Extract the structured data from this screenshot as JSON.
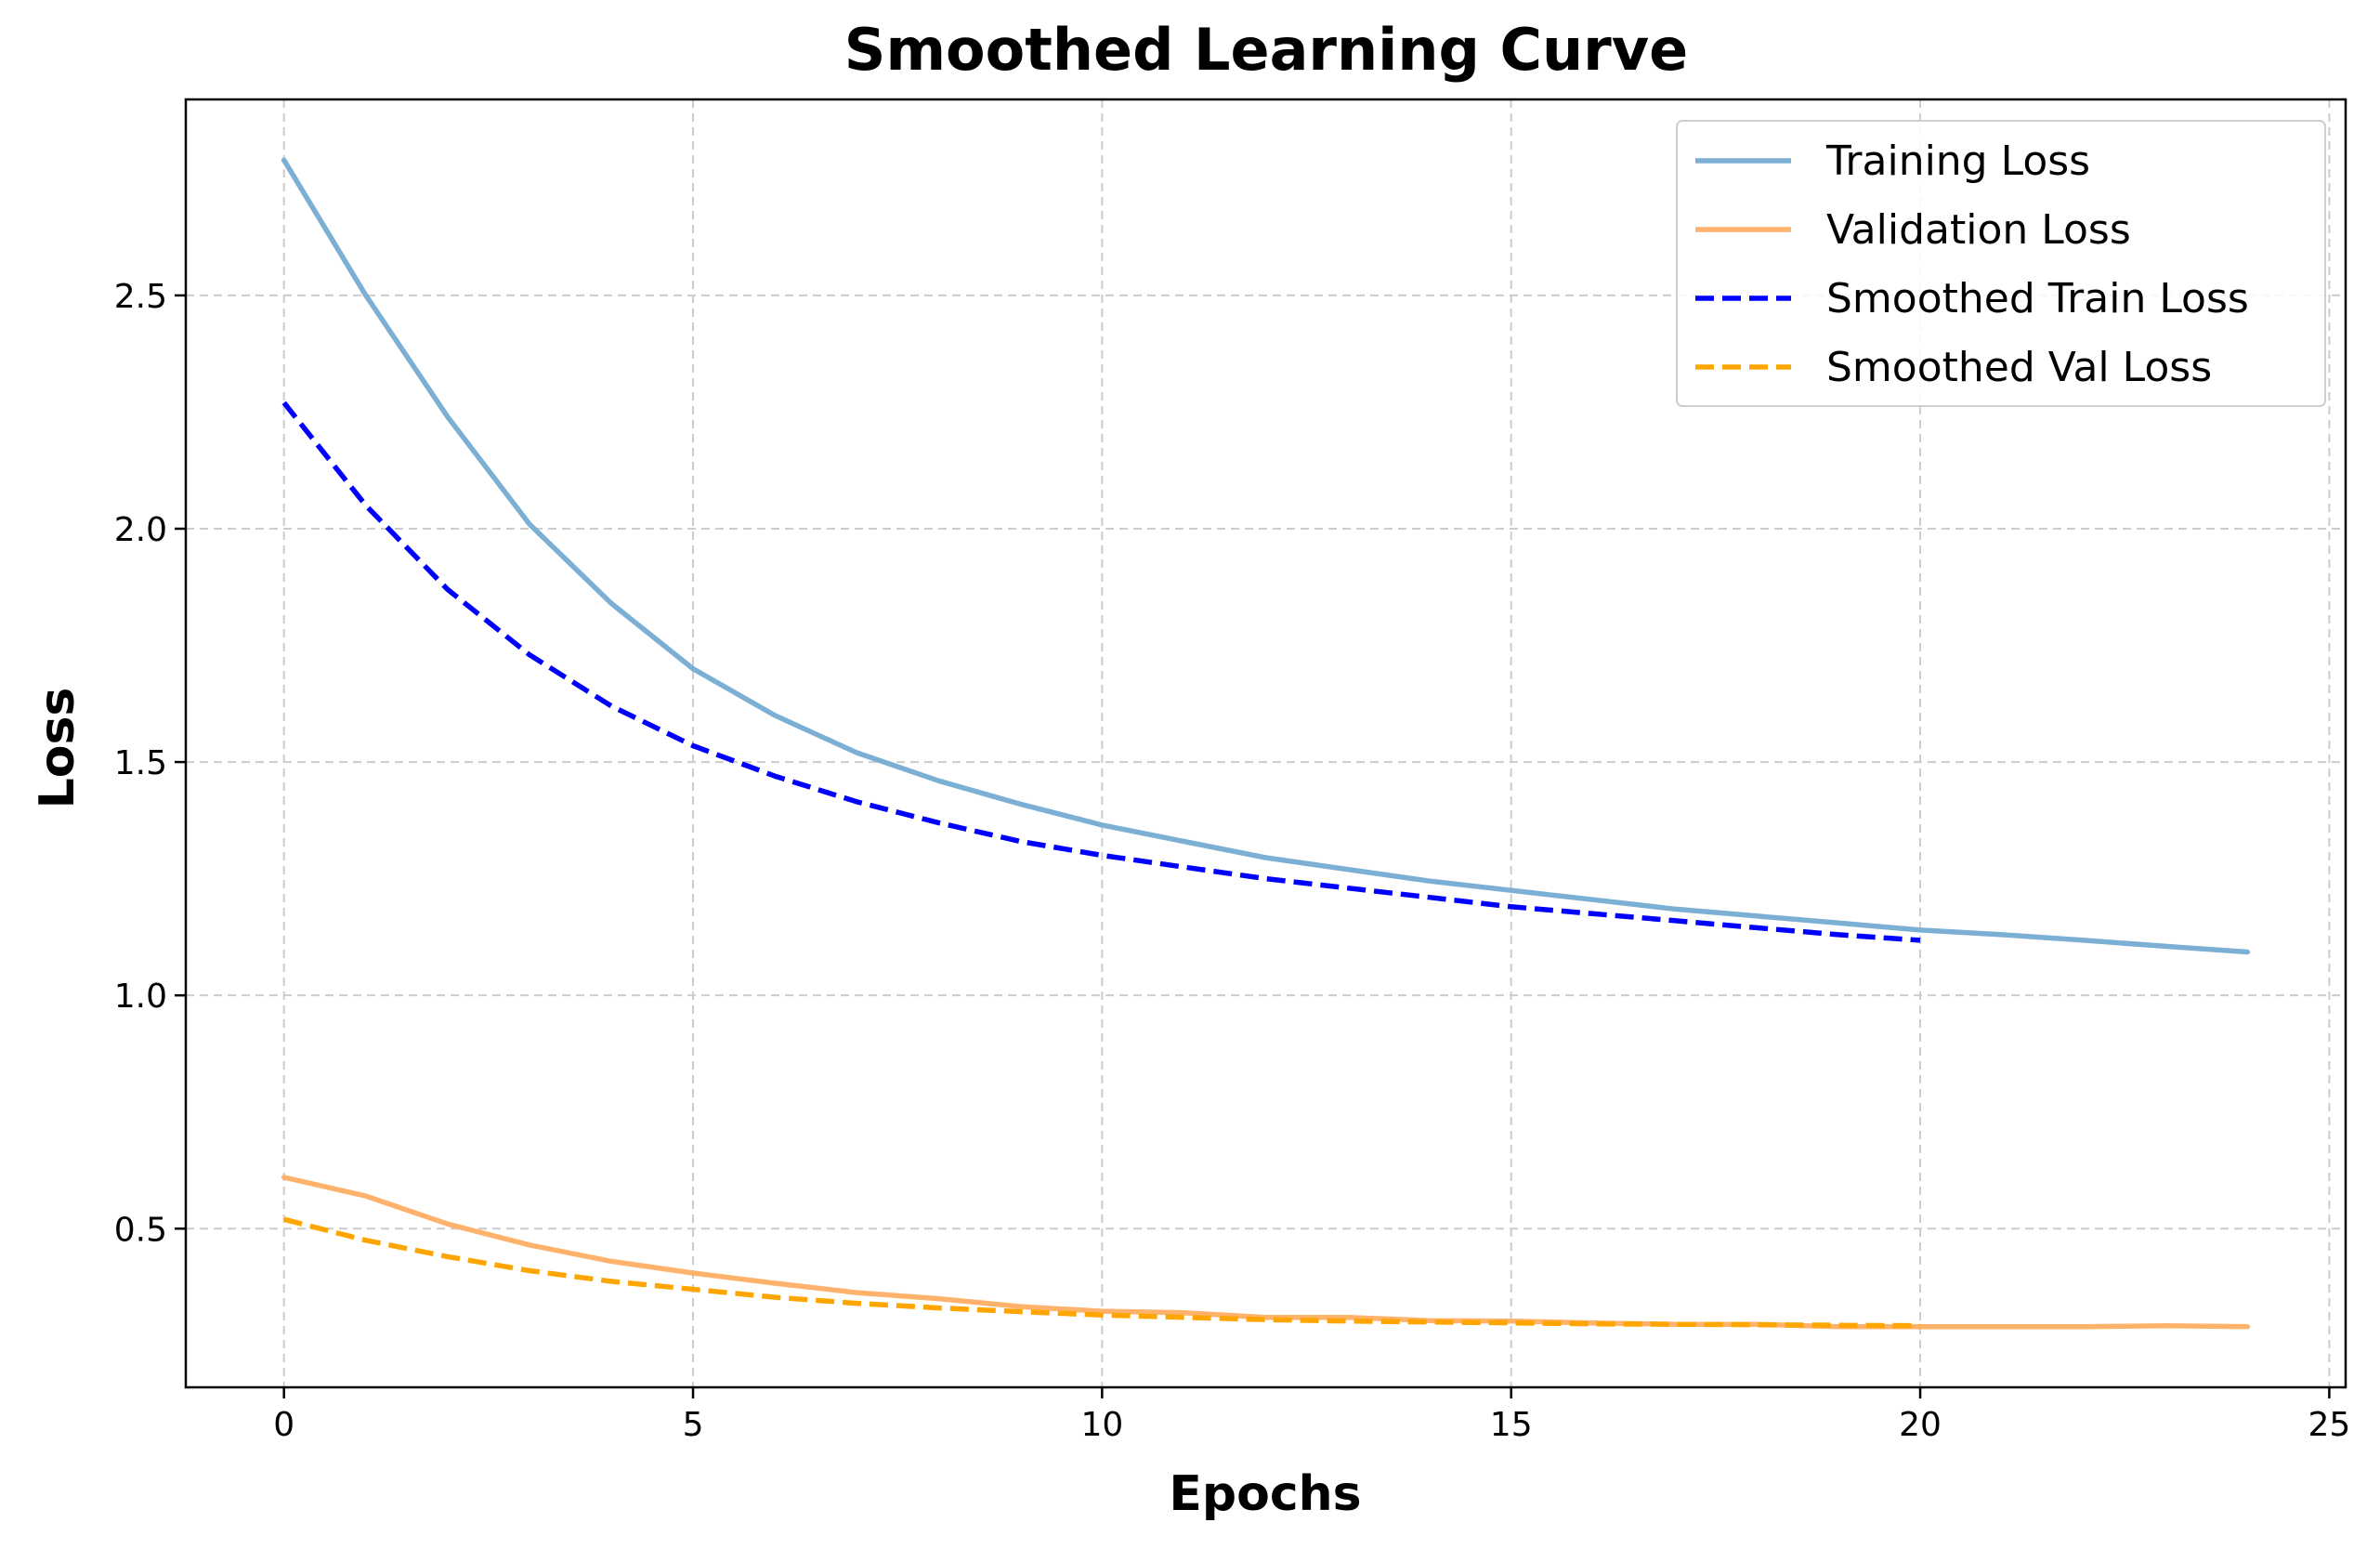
{
  "chart_data": {
    "type": "line",
    "title": "Smoothed Learning Curve",
    "xlabel": "Epochs",
    "ylabel": "Loss",
    "xlim": [
      -1.2,
      25.2
    ],
    "ylim": [
      0.16,
      2.92
    ],
    "xticks": [
      0,
      5,
      10,
      15,
      20,
      25
    ],
    "yticks": [
      0.5,
      1.0,
      1.5,
      2.0,
      2.5
    ],
    "grid": true,
    "legend_position": "top-right",
    "series": [
      {
        "name": "Training Loss",
        "color": "#7bafd4",
        "style": "solid",
        "x": [
          0,
          1,
          2,
          3,
          4,
          5,
          6,
          7,
          8,
          9,
          10,
          11,
          12,
          13,
          14,
          15,
          16,
          17,
          18,
          19,
          20,
          21,
          22,
          23,
          24
        ],
        "values": [
          2.79,
          2.5,
          2.24,
          2.01,
          1.84,
          1.7,
          1.6,
          1.52,
          1.46,
          1.41,
          1.365,
          1.33,
          1.295,
          1.27,
          1.245,
          1.225,
          1.205,
          1.185,
          1.17,
          1.155,
          1.14,
          1.13,
          1.118,
          1.105,
          1.093
        ]
      },
      {
        "name": "Validation Loss",
        "color": "#ffb26b",
        "style": "solid",
        "x": [
          0,
          1,
          2,
          3,
          4,
          5,
          6,
          7,
          8,
          9,
          10,
          11,
          12,
          13,
          14,
          15,
          16,
          17,
          18,
          19,
          20,
          21,
          22,
          23,
          24
        ],
        "values": [
          0.61,
          0.57,
          0.51,
          0.465,
          0.43,
          0.405,
          0.383,
          0.363,
          0.35,
          0.333,
          0.323,
          0.32,
          0.31,
          0.31,
          0.303,
          0.302,
          0.298,
          0.295,
          0.295,
          0.29,
          0.29,
          0.29,
          0.29,
          0.292,
          0.29
        ]
      },
      {
        "name": "Smoothed Train Loss",
        "color": "#0000ff",
        "style": "dashed",
        "x": [
          0,
          1,
          2,
          3,
          4,
          5,
          6,
          7,
          8,
          9,
          10,
          11,
          12,
          13,
          14,
          15,
          16,
          17,
          18,
          19,
          20
        ],
        "values": [
          2.27,
          2.05,
          1.87,
          1.73,
          1.62,
          1.535,
          1.47,
          1.415,
          1.37,
          1.33,
          1.3,
          1.275,
          1.25,
          1.23,
          1.21,
          1.19,
          1.175,
          1.16,
          1.145,
          1.13,
          1.118
        ]
      },
      {
        "name": "Smoothed Val Loss",
        "color": "#ffa500",
        "style": "dashed",
        "x": [
          0,
          1,
          2,
          3,
          4,
          5,
          6,
          7,
          8,
          9,
          10,
          11,
          12,
          13,
          14,
          15,
          16,
          17,
          18,
          19,
          20
        ],
        "values": [
          0.52,
          0.475,
          0.44,
          0.41,
          0.387,
          0.37,
          0.353,
          0.34,
          0.33,
          0.322,
          0.315,
          0.31,
          0.305,
          0.302,
          0.3,
          0.298,
          0.296,
          0.295,
          0.294,
          0.293,
          0.292
        ]
      }
    ]
  }
}
